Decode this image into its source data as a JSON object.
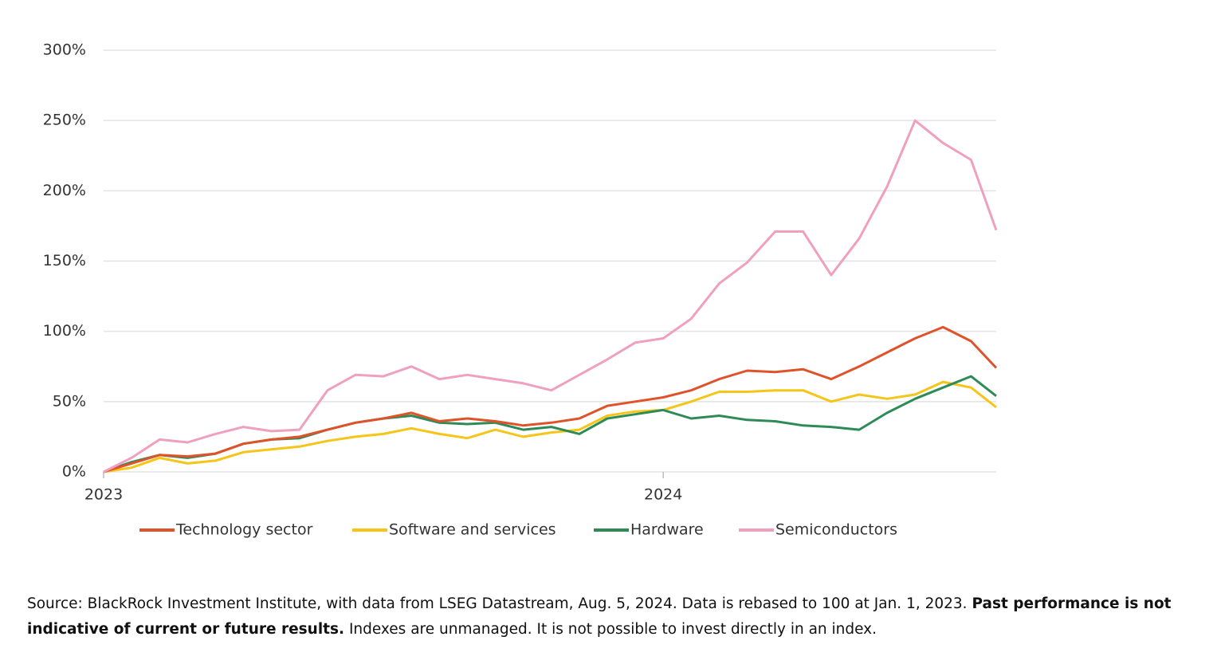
{
  "chart_data": {
    "type": "line",
    "x": [
      2023,
      2023.05,
      2023.1,
      2023.15,
      2023.2,
      2023.25,
      2023.3,
      2023.35,
      2023.4,
      2023.45,
      2023.5,
      2023.55,
      2023.6,
      2023.65,
      2023.7,
      2023.75,
      2023.8,
      2023.85,
      2023.9,
      2023.95,
      2024,
      2024.05,
      2024.1,
      2024.15,
      2024.2,
      2024.25,
      2024.3,
      2024.35,
      2024.4,
      2024.45,
      2024.5,
      2024.55,
      2024.595
    ],
    "xlim": [
      2023,
      2024.595
    ],
    "xticks": [
      2023,
      2024
    ],
    "ylim": [
      0,
      300
    ],
    "yticks": [
      {
        "value": 0,
        "label": "0%"
      },
      {
        "value": 50,
        "label": "50%"
      },
      {
        "value": 100,
        "label": "100%"
      },
      {
        "value": 150,
        "label": "150%"
      },
      {
        "value": 200,
        "label": "200%"
      },
      {
        "value": 250,
        "label": "250%"
      },
      {
        "value": 300,
        "label": "300%"
      }
    ],
    "grid": true,
    "legend": "bottom",
    "series": [
      {
        "name": "Technology sector",
        "color": "#e0522a",
        "values": [
          0,
          6,
          12,
          11,
          13,
          20,
          23,
          25,
          30,
          35,
          38,
          42,
          36,
          38,
          36,
          33,
          35,
          38,
          47,
          50,
          53,
          58,
          66,
          72,
          71,
          73,
          66,
          75,
          85,
          95,
          103,
          93,
          74
        ]
      },
      {
        "name": "Software and services",
        "color": "#f5c518",
        "values": [
          0,
          3,
          10,
          6,
          8,
          14,
          16,
          18,
          22,
          25,
          27,
          31,
          27,
          24,
          30,
          25,
          28,
          30,
          40,
          43,
          44,
          50,
          57,
          57,
          58,
          58,
          50,
          55,
          52,
          55,
          64,
          60,
          46
        ]
      },
      {
        "name": "Hardware",
        "color": "#2e8b57",
        "values": [
          0,
          7,
          12,
          10,
          13,
          20,
          23,
          24,
          30,
          35,
          38,
          40,
          35,
          34,
          35,
          30,
          32,
          27,
          38,
          41,
          44,
          38,
          40,
          37,
          36,
          33,
          32,
          30,
          42,
          52,
          60,
          68,
          54
        ]
      },
      {
        "name": "Semiconductors",
        "color": "#f0a0bf",
        "values": [
          0,
          10,
          23,
          21,
          27,
          32,
          29,
          30,
          58,
          69,
          68,
          75,
          66,
          69,
          66,
          63,
          58,
          69,
          80,
          92,
          95,
          109,
          134,
          149,
          171,
          171,
          140,
          166,
          203,
          250,
          234,
          222,
          172
        ]
      }
    ]
  },
  "caption": {
    "text_1": "Source: BlackRock Investment Institute, with data from LSEG Datastream, Aug. 5, 2024. Data is rebased to 100 at Jan. 1, 2023. ",
    "bold": "Past performance is not indicative of current or future results.",
    "text_2": " Indexes are unmanaged. It is not possible to invest directly in an index."
  }
}
